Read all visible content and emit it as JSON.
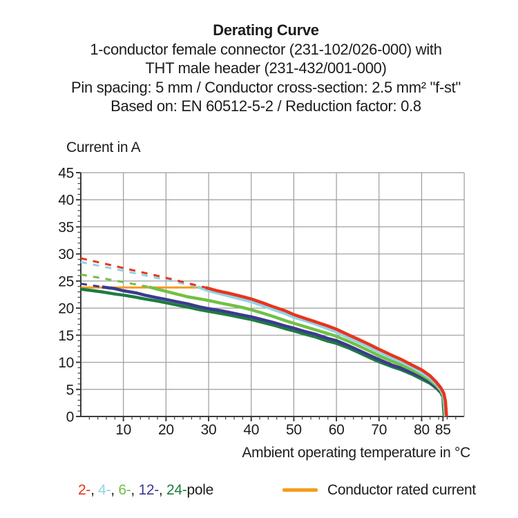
{
  "header": {
    "title": "Derating Curve",
    "subtitle_lines": [
      "1-conductor female connector (231-102/026-000) with",
      "THT male header (231-432/001-000)",
      "Pin spacing: 5 mm / Conductor cross-section: 2.5 mm² \"f-st\"",
      "Based on: EN 60512-5-2 / Reduction factor: 0.8"
    ]
  },
  "chart_data": {
    "type": "line",
    "title": "Derating Curve",
    "xlabel": "Ambient operating temperature in °C",
    "ylabel": "Current in A",
    "xlim": [
      0,
      90
    ],
    "ylim": [
      0,
      45
    ],
    "grid": true,
    "x_major_ticks": [
      10,
      20,
      30,
      40,
      50,
      60,
      70,
      80,
      85
    ],
    "x_gridline_step": 10,
    "x_minor_tick_step": 2,
    "y_major_ticks": [
      0,
      5,
      10,
      15,
      20,
      25,
      30,
      35,
      40,
      45
    ],
    "y_gridline_step": 5,
    "y_minor_tick_step": 1,
    "colors": {
      "grid": "#9b9b9b",
      "axis": "#3c3c3c",
      "text": "#1c1c1c"
    },
    "series": [
      {
        "name": "Conductor rated current",
        "role": "rated-current",
        "color": "#f59b1f",
        "width": 3,
        "dashed": [],
        "solid": [
          [
            0,
            23.8
          ],
          [
            29.3,
            23.8
          ]
        ]
      },
      {
        "name": "24-pole",
        "color": "#1f7c3f",
        "width": 4.5,
        "dashed": [],
        "solid": [
          [
            0,
            23.5
          ],
          [
            3,
            23.2
          ],
          [
            5,
            23.0
          ],
          [
            8,
            22.6
          ],
          [
            10,
            22.4
          ],
          [
            13,
            22.0
          ],
          [
            15,
            21.7
          ],
          [
            18,
            21.3
          ],
          [
            20,
            21.0
          ],
          [
            23,
            20.5
          ],
          [
            25,
            20.2
          ],
          [
            28,
            19.7
          ],
          [
            30,
            19.4
          ],
          [
            33,
            19.0
          ],
          [
            35,
            18.7
          ],
          [
            38,
            18.2
          ],
          [
            40,
            17.9
          ],
          [
            43,
            17.3
          ],
          [
            45,
            16.9
          ],
          [
            48,
            16.2
          ],
          [
            50,
            15.8
          ],
          [
            53,
            15.1
          ],
          [
            55,
            14.7
          ],
          [
            58,
            13.9
          ],
          [
            60,
            13.5
          ],
          [
            63,
            12.6
          ],
          [
            65,
            11.9
          ],
          [
            68,
            10.8
          ],
          [
            70,
            10.1
          ],
          [
            73,
            9.2
          ],
          [
            75,
            8.7
          ],
          [
            78,
            7.7
          ],
          [
            80,
            6.9
          ],
          [
            82,
            6.1
          ],
          [
            83.5,
            5.2
          ],
          [
            84.5,
            4.4
          ],
          [
            85.0,
            3.6
          ],
          [
            85.1,
            2.0
          ],
          [
            85.3,
            0
          ]
        ]
      },
      {
        "name": "12-pole",
        "color": "#3b3a90",
        "width": 4.5,
        "dashed": [
          [
            0,
            24.5
          ],
          [
            5,
            23.9
          ]
        ],
        "solid": [
          [
            5,
            23.9
          ],
          [
            8,
            23.6
          ],
          [
            10,
            23.2
          ],
          [
            13,
            22.8
          ],
          [
            15,
            22.4
          ],
          [
            18,
            21.9
          ],
          [
            20,
            21.6
          ],
          [
            23,
            21.1
          ],
          [
            25,
            20.8
          ],
          [
            28,
            20.2
          ],
          [
            30,
            19.9
          ],
          [
            33,
            19.5
          ],
          [
            35,
            19.2
          ],
          [
            38,
            18.7
          ],
          [
            40,
            18.4
          ],
          [
            43,
            17.8
          ],
          [
            45,
            17.4
          ],
          [
            48,
            16.7
          ],
          [
            50,
            16.3
          ],
          [
            53,
            15.6
          ],
          [
            55,
            15.2
          ],
          [
            58,
            14.4
          ],
          [
            60,
            14.0
          ],
          [
            63,
            13.0
          ],
          [
            65,
            12.3
          ],
          [
            68,
            11.2
          ],
          [
            70,
            10.5
          ],
          [
            73,
            9.5
          ],
          [
            75,
            9.0
          ],
          [
            78,
            8.0
          ],
          [
            80,
            7.3
          ],
          [
            82,
            6.4
          ],
          [
            83.5,
            5.4
          ],
          [
            84.5,
            4.6
          ],
          [
            85.0,
            3.8
          ],
          [
            85.15,
            2.2
          ],
          [
            85.35,
            0
          ]
        ]
      },
      {
        "name": "6-pole",
        "color": "#71c045",
        "width": 4.5,
        "dashed": [
          [
            0,
            26.2
          ],
          [
            8,
            25.1
          ],
          [
            16,
            23.9
          ]
        ],
        "solid": [
          [
            16,
            23.9
          ],
          [
            18,
            23.5
          ],
          [
            20,
            23.1
          ],
          [
            23,
            22.5
          ],
          [
            25,
            22.1
          ],
          [
            28,
            21.7
          ],
          [
            30,
            21.4
          ],
          [
            33,
            20.9
          ],
          [
            35,
            20.6
          ],
          [
            38,
            20.1
          ],
          [
            40,
            19.7
          ],
          [
            43,
            19.0
          ],
          [
            45,
            18.5
          ],
          [
            48,
            17.7
          ],
          [
            50,
            17.2
          ],
          [
            53,
            16.5
          ],
          [
            55,
            16.0
          ],
          [
            58,
            15.3
          ],
          [
            60,
            14.8
          ],
          [
            63,
            13.8
          ],
          [
            65,
            13.1
          ],
          [
            68,
            12.0
          ],
          [
            70,
            11.2
          ],
          [
            73,
            10.2
          ],
          [
            75,
            9.6
          ],
          [
            78,
            8.5
          ],
          [
            80,
            7.7
          ],
          [
            82,
            6.7
          ],
          [
            83.5,
            5.7
          ],
          [
            84.5,
            4.8
          ],
          [
            85.0,
            3.9
          ],
          [
            85.25,
            2.3
          ],
          [
            85.45,
            0
          ]
        ]
      },
      {
        "name": "4-pole",
        "color": "#90d3e5",
        "width": 4.5,
        "dashed": [
          [
            0,
            28.5
          ],
          [
            10,
            26.9
          ],
          [
            20,
            25.2
          ],
          [
            27.5,
            23.9
          ]
        ],
        "solid": [
          [
            27.5,
            23.9
          ],
          [
            30,
            23.2
          ],
          [
            33,
            22.6
          ],
          [
            35,
            22.2
          ],
          [
            38,
            21.6
          ],
          [
            40,
            21.2
          ],
          [
            43,
            20.4
          ],
          [
            45,
            19.8
          ],
          [
            48,
            19.0
          ],
          [
            50,
            18.3
          ],
          [
            53,
            17.6
          ],
          [
            55,
            17.1
          ],
          [
            58,
            16.2
          ],
          [
            60,
            15.6
          ],
          [
            63,
            14.5
          ],
          [
            65,
            13.8
          ],
          [
            68,
            12.7
          ],
          [
            70,
            11.9
          ],
          [
            73,
            10.8
          ],
          [
            75,
            10.2
          ],
          [
            78,
            9.0
          ],
          [
            80,
            8.1
          ],
          [
            82,
            7.1
          ],
          [
            83.5,
            6.0
          ],
          [
            84.5,
            5.0
          ],
          [
            85.1,
            4.1
          ],
          [
            85.45,
            2.5
          ],
          [
            85.65,
            0
          ]
        ]
      },
      {
        "name": "2-pole",
        "color": "#e8341c",
        "width": 4.5,
        "dashed": [
          [
            0,
            29.2
          ],
          [
            10,
            27.4
          ],
          [
            20,
            25.6
          ],
          [
            29.3,
            23.8
          ]
        ],
        "solid": [
          [
            29.3,
            23.8
          ],
          [
            32,
            23.2
          ],
          [
            35,
            22.7
          ],
          [
            38,
            22.1
          ],
          [
            40,
            21.7
          ],
          [
            43,
            20.9
          ],
          [
            45,
            20.3
          ],
          [
            48,
            19.5
          ],
          [
            50,
            18.8
          ],
          [
            53,
            18.0
          ],
          [
            55,
            17.5
          ],
          [
            58,
            16.7
          ],
          [
            60,
            16.1
          ],
          [
            63,
            15.0
          ],
          [
            65,
            14.3
          ],
          [
            68,
            13.2
          ],
          [
            70,
            12.4
          ],
          [
            73,
            11.3
          ],
          [
            75,
            10.6
          ],
          [
            78,
            9.4
          ],
          [
            80,
            8.6
          ],
          [
            82,
            7.5
          ],
          [
            83.5,
            6.3
          ],
          [
            84.5,
            5.3
          ],
          [
            85.2,
            4.3
          ],
          [
            85.6,
            2.8
          ],
          [
            85.85,
            0
          ]
        ]
      }
    ]
  },
  "legend": {
    "pole_items": [
      {
        "label": "2-",
        "color": "#e8341c"
      },
      {
        "label": "4-",
        "color": "#90d3e5"
      },
      {
        "label": "6-",
        "color": "#71c045"
      },
      {
        "label": "12-",
        "color": "#3b3a90"
      },
      {
        "label": "24-",
        "color": "#1f7c3f"
      }
    ],
    "pole_separator": ", ",
    "pole_suffix": "pole",
    "rated": {
      "label": "Conductor rated current",
      "color": "#f59b1f"
    }
  }
}
